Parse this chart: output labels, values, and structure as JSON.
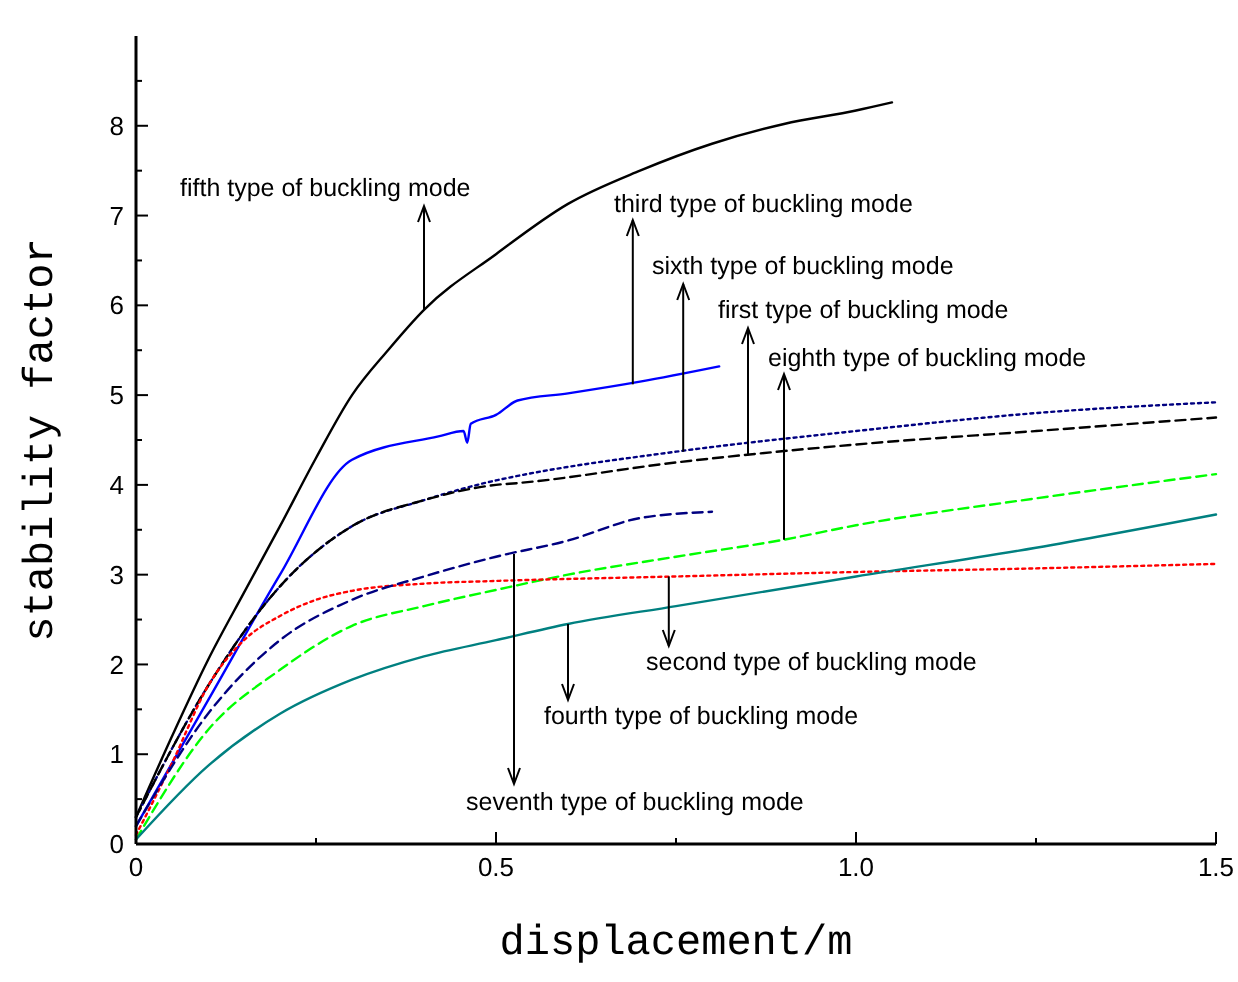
{
  "chart_data": {
    "type": "line",
    "xlabel": "displacement/m",
    "ylabel": "stability factor",
    "xlim": [
      0,
      1.5
    ],
    "ylim": [
      0,
      9
    ],
    "xticks": [
      0,
      {
        "value": 0.25,
        "label": null
      },
      0.5,
      {
        "value": 0.75,
        "label": null
      },
      {
        "value": 1,
        "label": "1.0"
      },
      {
        "value": 1.25,
        "label": null
      },
      1.5
    ],
    "yticks": [
      0,
      {
        "value": 0.5,
        "label": null
      },
      1,
      {
        "value": 1.5,
        "label": null
      },
      2,
      {
        "value": 2.5,
        "label": null
      },
      3,
      {
        "value": 3.5,
        "label": null
      },
      4,
      {
        "value": 4.5,
        "label": null
      },
      5,
      {
        "value": 5.5,
        "label": null
      },
      6,
      {
        "value": 6.5,
        "label": null
      },
      7,
      {
        "value": 7.5,
        "label": null
      },
      8,
      {
        "value": 8.5,
        "label": null
      }
    ],
    "grid": false,
    "marker": "none",
    "series": [
      {
        "color": "#000000",
        "line_style": "solid",
        "x": [
          0,
          0.05,
          0.1,
          0.15,
          0.2,
          0.25,
          0.3,
          0.35,
          0.4,
          0.5,
          0.6,
          0.7,
          0.8,
          0.9,
          1.0,
          1.05
        ],
        "values": [
          0.3,
          1.2,
          2.05,
          2.8,
          3.54,
          4.3,
          5.0,
          5.5,
          5.95,
          6.57,
          7.13,
          7.5,
          7.8,
          8.02,
          8.17,
          8.26
        ]
      },
      {
        "color": "#0000ff",
        "line_style": "solid",
        "x": [
          0,
          0.1,
          0.2,
          0.3,
          0.42,
          0.455,
          0.46,
          0.465,
          0.5,
          0.53,
          0.6,
          0.7,
          0.81
        ],
        "values": [
          0.2,
          1.6,
          3.0,
          4.28,
          4.54,
          4.6,
          4.47,
          4.68,
          4.78,
          4.94,
          5.02,
          5.15,
          5.32
        ]
      },
      {
        "color": "#000080",
        "line_style": "dotted",
        "x": [
          0,
          0.1,
          0.2,
          0.3,
          0.4,
          0.5,
          0.53,
          0.75,
          1.0,
          1.25,
          1.5
        ],
        "values": [
          0.3,
          1.76,
          2.87,
          3.54,
          3.83,
          4.05,
          4.1,
          4.37,
          4.6,
          4.8,
          4.92
        ]
      },
      {
        "color": "#000000",
        "line_style": "dashed",
        "x": [
          0,
          0.1,
          0.2,
          0.3,
          0.4,
          0.5,
          0.53,
          0.75,
          1.0,
          1.25,
          1.5
        ],
        "values": [
          0.3,
          1.76,
          2.87,
          3.54,
          3.83,
          4.0,
          4.02,
          4.25,
          4.45,
          4.6,
          4.75
        ]
      },
      {
        "color": "#00ff00",
        "line_style": "dashed",
        "x": [
          0,
          0.1,
          0.2,
          0.3,
          0.4,
          0.5,
          0.6,
          0.75,
          0.9,
          1.0,
          1.25,
          1.5
        ],
        "values": [
          0.05,
          1.27,
          1.94,
          2.43,
          2.65,
          2.83,
          3.0,
          3.2,
          3.39,
          3.55,
          3.85,
          4.12
        ]
      },
      {
        "color": "#ff0000",
        "line_style": "dotted",
        "x": [
          0,
          0.05,
          0.1,
          0.15,
          0.2,
          0.25,
          0.3,
          0.4,
          0.5,
          0.75,
          1.0,
          1.25,
          1.5
        ],
        "values": [
          0.1,
          0.9,
          1.76,
          2.27,
          2.54,
          2.72,
          2.82,
          2.9,
          2.93,
          2.98,
          3.03,
          3.07,
          3.12
        ]
      },
      {
        "color": "#008080",
        "line_style": "solid",
        "x": [
          0,
          0.1,
          0.2,
          0.3,
          0.4,
          0.5,
          0.6,
          0.75,
          1.0,
          1.25,
          1.5
        ],
        "values": [
          0.05,
          0.87,
          1.45,
          1.83,
          2.09,
          2.27,
          2.45,
          2.65,
          2.98,
          3.3,
          3.67
        ]
      },
      {
        "color": "#000080",
        "line_style": "dashed",
        "x": [
          0,
          0.1,
          0.2,
          0.3,
          0.4,
          0.5,
          0.6,
          0.7,
          0.8
        ],
        "values": [
          0.2,
          1.45,
          2.27,
          2.72,
          2.98,
          3.2,
          3.38,
          3.63,
          3.7
        ]
      }
    ],
    "annotations": [
      {
        "text": "fifth type of buckling mode",
        "x": 0.4,
        "y": 5.95
      },
      {
        "text": "third type of buckling mode",
        "x": 0.69,
        "y": 5.12
      },
      {
        "text": "sixth type of buckling mode",
        "x": 0.76,
        "y": 4.37
      },
      {
        "text": "first type of buckling mode",
        "x": 0.85,
        "y": 4.33
      },
      {
        "text": "eighth type of buckling mode",
        "x": 0.9,
        "y": 3.39
      },
      {
        "text": "second type of buckling mode",
        "x": 0.74,
        "y": 2.98
      },
      {
        "text": "fourth type of buckling mode",
        "x": 0.6,
        "y": 2.45
      },
      {
        "text": "seventh type of buckling mode",
        "x": 0.525,
        "y": 3.23
      }
    ]
  }
}
